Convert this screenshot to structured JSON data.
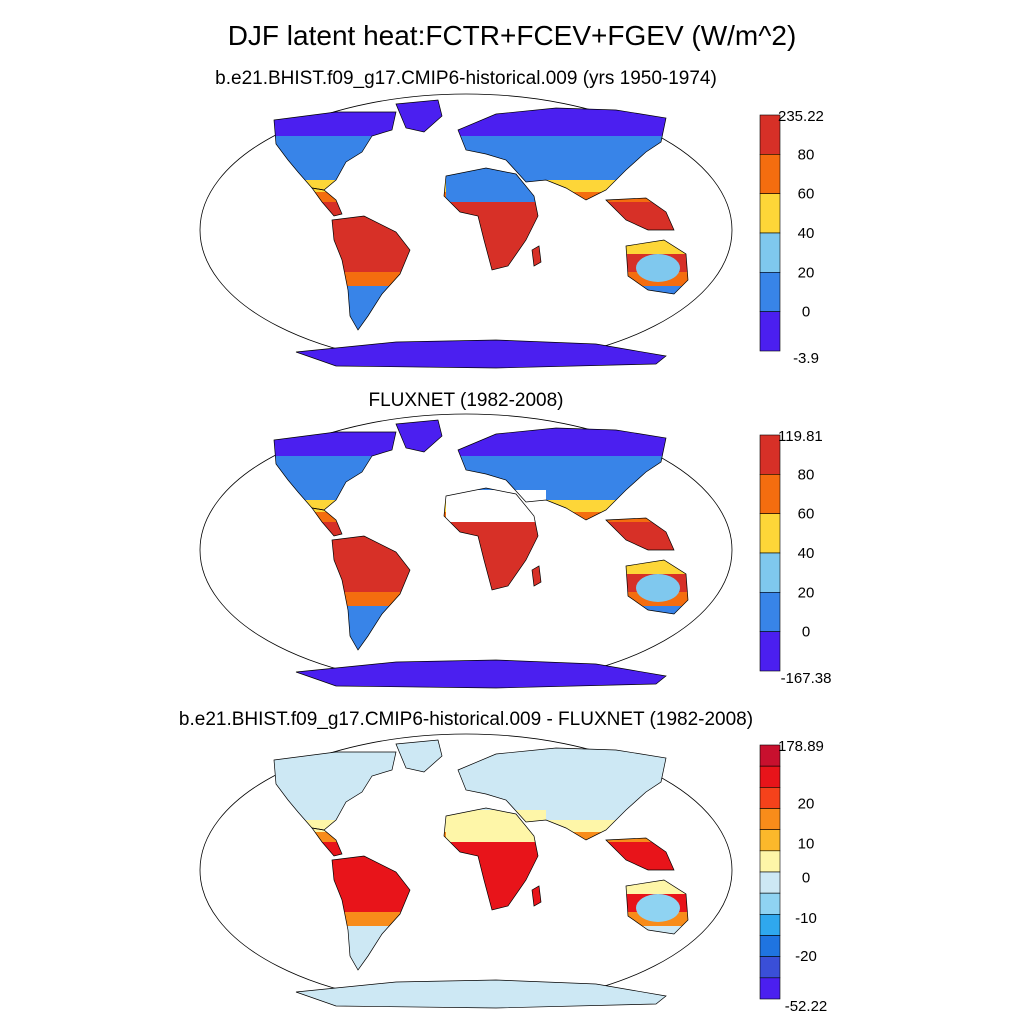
{
  "title": "DJF latent heat:FCTR+FCEV+FGEV (W/m^2)",
  "panels": [
    {
      "title": "b.e21.BHIST.f09_g17.CMIP6-historical.009 (yrs 1950-1974)",
      "colorbar": {
        "labels": [
          "235.22",
          "80",
          "60",
          "40",
          "20",
          "0",
          "-3.9"
        ],
        "colors": [
          "#d73027",
          "#f46d0f",
          "#fdd638",
          "#7fc8ee",
          "#3884e8",
          "#4b1ff0"
        ]
      },
      "fills": {
        "tropics": "#d73027",
        "transition": "#f46d0f",
        "subtropics": "#fdd638",
        "temperate": "#3884e8",
        "polar": "#4b1ff0",
        "light": "#7fc8ee",
        "desert": "#3884e8"
      }
    },
    {
      "title": "FLUXNET (1982-2008)",
      "colorbar": {
        "labels": [
          "119.81",
          "80",
          "60",
          "40",
          "20",
          "0",
          "-167.38"
        ],
        "colors": [
          "#d73027",
          "#f46d0f",
          "#fdd638",
          "#7fc8ee",
          "#3884e8",
          "#4b1ff0"
        ]
      },
      "fills": {
        "tropics": "#d73027",
        "transition": "#f46d0f",
        "subtropics": "#fdd638",
        "temperate": "#3884e8",
        "polar": "#4b1ff0",
        "light": "#7fc8ee",
        "desert": "#ffffff"
      }
    },
    {
      "title": "b.e21.BHIST.f09_g17.CMIP6-historical.009 - FLUXNET (1982-2008)",
      "colorbar": {
        "labels": [
          "178.89",
          "",
          "20",
          "10",
          "0",
          "-10",
          "-20",
          "",
          "-52.22"
        ],
        "colors": [
          "#c8102e",
          "#e8141a",
          "#f5421b",
          "#f88c1a",
          "#fbb82b",
          "#fef6a8",
          "#cde8f4",
          "#8fd3f2",
          "#2fa8ee",
          "#1f74e0",
          "#3a4fd8",
          "#4b1ff0"
        ]
      },
      "fills": {
        "tropics": "#e8141a",
        "transition": "#f88c1a",
        "subtropics": "#fef6a8",
        "temperate": "#cde8f4",
        "polar": "#cde8f4",
        "light": "#8fd3f2",
        "desert": "#fef6a8"
      }
    }
  ]
}
